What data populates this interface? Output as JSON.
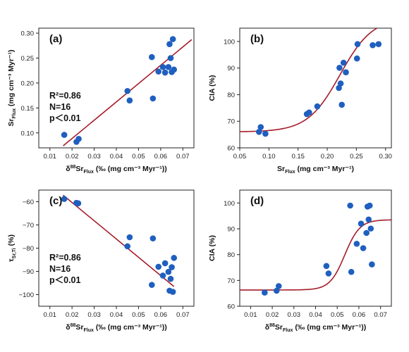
{
  "style": {
    "point_color": "#1f5fbf",
    "line_color": "#a51c2a",
    "axis_color": "#222222"
  },
  "chart_data": [
    {
      "id": "a",
      "type": "scatter",
      "panel_label": "(a)",
      "xlabel": {
        "pre": "δ",
        "sup": "88",
        "main": "Sr",
        "sub": "Flux",
        "post": " (‰ (mg cm⁻³ Myr⁻¹))"
      },
      "ylabel": {
        "main": "Sr",
        "sub": "Flux",
        "post": " (mg cm⁻³ Myr⁻¹)"
      },
      "xlim": [
        0.005,
        0.075
      ],
      "ylim": [
        0.07,
        0.31
      ],
      "xticks": [
        0.01,
        0.02,
        0.03,
        0.04,
        0.05,
        0.06,
        0.07
      ],
      "xtick_labels": [
        "0.01",
        "0.02",
        "0.03",
        "0.04",
        "0.05",
        "0.06",
        "0.07"
      ],
      "yticks": [
        0.1,
        0.15,
        0.2,
        0.25,
        0.3
      ],
      "ytick_labels": [
        "0.10",
        "0.15",
        "0.20",
        "0.25",
        "0.30"
      ],
      "annotations": [
        "R²=0.86",
        "N=16",
        "p＜0.01"
      ],
      "points": [
        [
          0.0165,
          0.096
        ],
        [
          0.022,
          0.082
        ],
        [
          0.023,
          0.088
        ],
        [
          0.045,
          0.184
        ],
        [
          0.046,
          0.165
        ],
        [
          0.056,
          0.252
        ],
        [
          0.0565,
          0.169
        ],
        [
          0.059,
          0.223
        ],
        [
          0.061,
          0.232
        ],
        [
          0.062,
          0.221
        ],
        [
          0.0635,
          0.232
        ],
        [
          0.064,
          0.278
        ],
        [
          0.0645,
          0.25
        ],
        [
          0.065,
          0.222
        ],
        [
          0.0655,
          0.288
        ],
        [
          0.066,
          0.227
        ]
      ],
      "fit": {
        "kind": "linear",
        "x": [
          0.016,
          0.074
        ],
        "y": [
          0.074,
          0.287
        ]
      }
    },
    {
      "id": "b",
      "type": "scatter",
      "panel_label": "(b)",
      "xlabel": {
        "pre": "",
        "sup": "",
        "main": "Sr",
        "sub": "Flux",
        "post": " (mg cm⁻³ Myr⁻¹)"
      },
      "ylabel": {
        "main": "CIA (%)",
        "sub": "",
        "post": ""
      },
      "xlim": [
        0.05,
        0.31
      ],
      "ylim": [
        60,
        105
      ],
      "xticks": [
        0.05,
        0.1,
        0.15,
        0.2,
        0.25,
        0.3
      ],
      "xtick_labels": [
        "0.05",
        "0.10",
        "0.15",
        "0.20",
        "0.25",
        "0.30"
      ],
      "yticks": [
        60,
        70,
        80,
        90,
        100
      ],
      "ytick_labels": [
        "60",
        "70",
        "80",
        "90",
        "100"
      ],
      "annotations": [],
      "points": [
        [
          0.083,
          66
        ],
        [
          0.086,
          67.8
        ],
        [
          0.094,
          65.3
        ],
        [
          0.165,
          72.7
        ],
        [
          0.169,
          73.3
        ],
        [
          0.183,
          75.6
        ],
        [
          0.22,
          82.5
        ],
        [
          0.221,
          90.1
        ],
        [
          0.223,
          84.2
        ],
        [
          0.225,
          76.2
        ],
        [
          0.228,
          92
        ],
        [
          0.232,
          88.4
        ],
        [
          0.251,
          93.6
        ],
        [
          0.252,
          99
        ],
        [
          0.278,
          98.6
        ],
        [
          0.288,
          99
        ]
      ],
      "fit": {
        "kind": "sigmoid",
        "base": 66,
        "top": 109,
        "x0": 0.222,
        "k": 36,
        "xrange": [
          0.05,
          0.31
        ]
      }
    },
    {
      "id": "c",
      "type": "scatter",
      "panel_label": "(c)",
      "xlabel": {
        "pre": "δ",
        "sup": "88",
        "main": "Sr",
        "sub": "Flux",
        "post": " (‰ (mg cm⁻³ Myr⁻¹))"
      },
      "ylabel": {
        "main": "τ",
        "sub": "Sr,Ti",
        "post": " (%)"
      },
      "xlim": [
        0.005,
        0.075
      ],
      "ylim": [
        -105,
        -55
      ],
      "xticks": [
        0.01,
        0.02,
        0.03,
        0.04,
        0.05,
        0.06,
        0.07
      ],
      "xtick_labels": [
        "0.01",
        "0.02",
        "0.03",
        "0.04",
        "0.05",
        "0.06",
        "0.07"
      ],
      "yticks": [
        -100,
        -90,
        -80,
        -70,
        -60
      ],
      "ytick_labels": [
        "−100",
        "−90",
        "−80",
        "−70",
        "−60"
      ],
      "annotations": [
        "R²=0.86",
        "N=16",
        "p＜0.01"
      ],
      "points": [
        [
          0.0165,
          -58.8
        ],
        [
          0.022,
          -60.5
        ],
        [
          0.0228,
          -60.7
        ],
        [
          0.045,
          -79.2
        ],
        [
          0.046,
          -75.3
        ],
        [
          0.056,
          -95.8
        ],
        [
          0.0565,
          -75.8
        ],
        [
          0.059,
          -88
        ],
        [
          0.061,
          -91.8
        ],
        [
          0.062,
          -86.5
        ],
        [
          0.0635,
          -90.2
        ],
        [
          0.064,
          -98.3
        ],
        [
          0.0645,
          -93.2
        ],
        [
          0.065,
          -88.2
        ],
        [
          0.0655,
          -98.8
        ],
        [
          0.066,
          -84.2
        ]
      ],
      "fit": {
        "kind": "linear",
        "x": [
          0.016,
          0.066
        ],
        "y": [
          -57.2,
          -96.5
        ]
      }
    },
    {
      "id": "d",
      "type": "scatter",
      "panel_label": "(d)",
      "xlabel": {
        "pre": "δ",
        "sup": "88",
        "main": "Sr",
        "sub": "Flux",
        "post": " (‰ (mg cm⁻³ Myr⁻¹))"
      },
      "ylabel": {
        "main": "CIA (%)",
        "sub": "",
        "post": ""
      },
      "xlim": [
        0.005,
        0.075
      ],
      "ylim": [
        60,
        105
      ],
      "xticks": [
        0.01,
        0.02,
        0.03,
        0.04,
        0.05,
        0.06,
        0.07
      ],
      "xtick_labels": [
        "0.01",
        "0.02",
        "0.03",
        "0.04",
        "0.05",
        "0.06",
        "0.07"
      ],
      "yticks": [
        60,
        70,
        80,
        90,
        100
      ],
      "ytick_labels": [
        "60",
        "70",
        "80",
        "90",
        "100"
      ],
      "annotations": [],
      "points": [
        [
          0.0165,
          65.3
        ],
        [
          0.022,
          66
        ],
        [
          0.023,
          67.8
        ],
        [
          0.045,
          75.6
        ],
        [
          0.046,
          72.7
        ],
        [
          0.056,
          99
        ],
        [
          0.0565,
          73.3
        ],
        [
          0.059,
          84.2
        ],
        [
          0.061,
          92
        ],
        [
          0.062,
          82.5
        ],
        [
          0.0635,
          88.4
        ],
        [
          0.064,
          98.6
        ],
        [
          0.0645,
          93.6
        ],
        [
          0.065,
          99
        ],
        [
          0.0655,
          90.1
        ],
        [
          0.066,
          76.2
        ]
      ],
      "fit": {
        "kind": "sigmoid",
        "base": 66.3,
        "top": 93.5,
        "x0": 0.0535,
        "k": 290,
        "xrange": [
          0.005,
          0.075
        ]
      }
    }
  ]
}
